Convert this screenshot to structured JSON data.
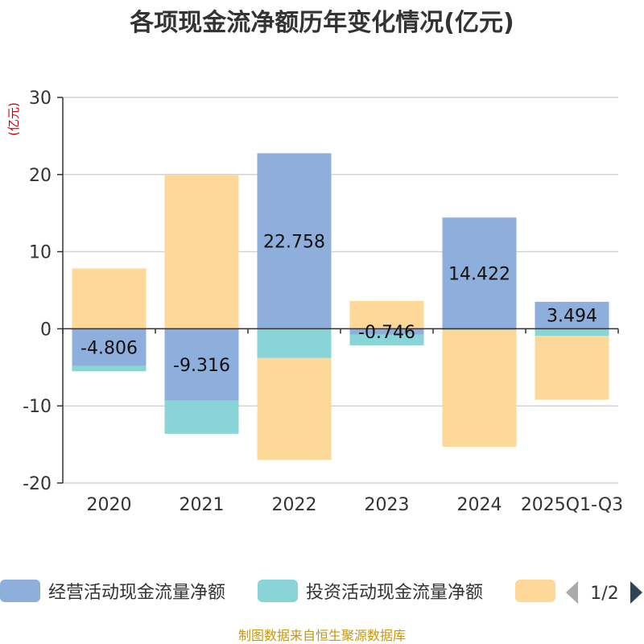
{
  "chart_data": {
    "type": "bar",
    "stacked": true,
    "title": "各项现金流净额历年变化情况(亿元)",
    "ylabel": "(亿元)",
    "xlabel": "",
    "categories": [
      "2020",
      "2021",
      "2022",
      "2023",
      "2024",
      "2025Q1-Q3"
    ],
    "ylim": [
      -20,
      30
    ],
    "yticks": [
      30,
      20,
      10,
      0,
      -10,
      -20
    ],
    "grid": true,
    "series": [
      {
        "name": "经营活动现金流量净额",
        "color": "#8eaedb",
        "values": [
          -4.806,
          -9.316,
          22.758,
          -0.746,
          14.422,
          3.494
        ],
        "labels": [
          "-4.806",
          "-9.316",
          "22.758",
          "-0.746",
          "14.422",
          "3.494"
        ]
      },
      {
        "name": "投资活动现金流量净额",
        "color": "#88d4d6",
        "values": [
          -0.7,
          -4.3,
          -3.8,
          -1.4,
          -0.2,
          -0.9
        ]
      },
      {
        "name": "",
        "color": "#fed898",
        "values": [
          7.8,
          19.9,
          -13.2,
          3.6,
          -15.1,
          -8.3
        ]
      }
    ],
    "legend_position": "bottom",
    "pager": "1/2",
    "source": "制图数据来自恒生聚源数据库"
  }
}
